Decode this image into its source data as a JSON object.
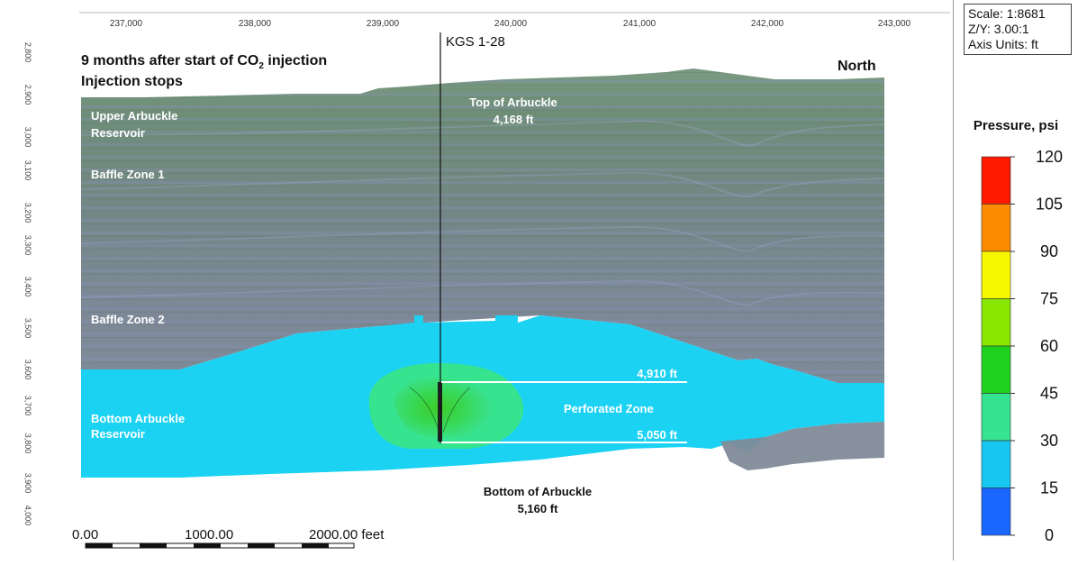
{
  "header": {
    "title_line1": "9 months after start of CO",
    "title_sub": "2",
    "title_line1_end": " injection",
    "title_line2": "Injection stops",
    "direction": "North"
  },
  "well": {
    "name": "KGS 1-28"
  },
  "x_axis": {
    "ticks": [
      "237,000",
      "238,000",
      "239,000",
      "240,000",
      "241,000",
      "242,000",
      "243,000"
    ]
  },
  "y_axis": {
    "ticks": [
      "2,800",
      "2,900",
      "3,000",
      "3,100",
      "3,200",
      "3,300",
      "3,400",
      "3,500",
      "3,600",
      "3,700",
      "3,800",
      "3,900",
      "4,000"
    ]
  },
  "zones": {
    "upper_arbuckle_1": "Upper Arbuckle",
    "upper_arbuckle_2": "Reservoir",
    "baffle_zone_1": "Baffle Zone 1",
    "baffle_zone_2": "Baffle Zone 2",
    "bottom_arbuckle_1": "Bottom Arbuckle",
    "bottom_arbuckle_2": "Reservoir",
    "perforated_zone": "Perforated Zone"
  },
  "annotations": {
    "top_arbuckle_1": "Top of Arbuckle",
    "top_arbuckle_2": "4,168 ft",
    "perf_top": "4,910 ft",
    "perf_bottom": "5,050 ft",
    "bottom_arbuckle_1": "Bottom of Arbuckle",
    "bottom_arbuckle_2": "5,160 ft"
  },
  "scale_bar": {
    "labels": [
      "0.00",
      "1000.00",
      "2000.00 feet"
    ]
  },
  "scale_box": {
    "scale": "Scale: 1:8681",
    "zy": "Z/Y: 3.00:1",
    "units": "Axis Units: ft"
  },
  "legend": {
    "title": "Pressure, psi",
    "ticks": [
      "120",
      "105",
      "90",
      "75",
      "60",
      "45",
      "30",
      "15",
      "0"
    ],
    "colors": [
      "#ff1a00",
      "#ff8c00",
      "#f7f700",
      "#88e600",
      "#1fd21f",
      "#36e38f",
      "#17c7f0",
      "#1a66ff"
    ]
  },
  "colors": {
    "rock_green": "#6f9079",
    "rock_gray": "#7f8b98",
    "cyan_plume": "#1bd2f3",
    "green_plume": "#2fd46e",
    "core_plume": "#3fd43a"
  }
}
